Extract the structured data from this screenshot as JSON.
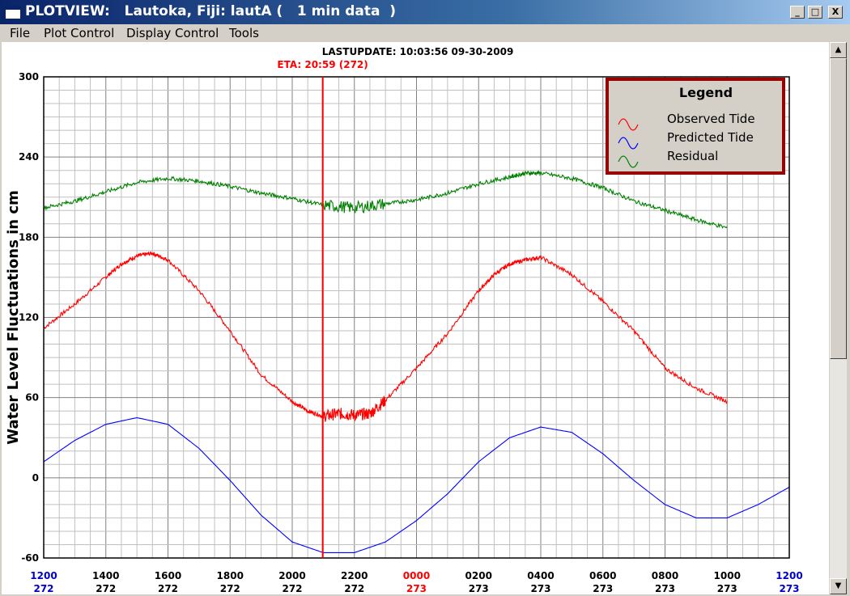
{
  "window": {
    "title": "PLOTVIEW:   Lautoka, Fiji: lautA (   1 min data  )",
    "minimize_glyph": "_",
    "maximize_glyph": "□",
    "close_glyph": "X"
  },
  "menu": [
    "File",
    "Plot Control",
    "Display Control",
    "Tools"
  ],
  "scrollbar": {
    "up_glyph": "▲",
    "down_glyph": "▼"
  },
  "plot": {
    "last_update": "LASTUPDATE: 10:03:56  09-30-2009",
    "eta_label": "ETA: 20:59 (272)",
    "colors": {
      "observed": "#ff0000",
      "predicted": "#0000ff",
      "residual": "#008000",
      "eta": "#ff0000",
      "legend_border": "#990000"
    }
  },
  "chart_data": {
    "type": "line",
    "ylabel": "Water Level Fluctuations in cm",
    "ylim": [
      -60,
      300
    ],
    "y_ticks": [
      "300",
      "240",
      "180",
      "120",
      "60",
      "0",
      "-60"
    ],
    "x_ticks": [
      {
        "time": "1200",
        "day": "272",
        "color": "blue"
      },
      {
        "time": "1400",
        "day": "272",
        "color": "black"
      },
      {
        "time": "1600",
        "day": "272",
        "color": "black"
      },
      {
        "time": "1800",
        "day": "272",
        "color": "black"
      },
      {
        "time": "2000",
        "day": "272",
        "color": "black"
      },
      {
        "time": "2200",
        "day": "272",
        "color": "black"
      },
      {
        "time": "0000",
        "day": "273",
        "color": "red"
      },
      {
        "time": "0200",
        "day": "273",
        "color": "black"
      },
      {
        "time": "0400",
        "day": "273",
        "color": "black"
      },
      {
        "time": "0600",
        "day": "273",
        "color": "black"
      },
      {
        "time": "0800",
        "day": "273",
        "color": "black"
      },
      {
        "time": "1000",
        "day": "273",
        "color": "black"
      },
      {
        "time": "1200",
        "day": "273",
        "color": "blue"
      }
    ],
    "x_hours_range": [
      12,
      36
    ],
    "eta_hour": 20.98,
    "legend": {
      "title": "Legend",
      "entries": [
        "Observed Tide",
        "Predicted Tide",
        "Residual"
      ],
      "placement": "top-right"
    },
    "series": [
      {
        "name": "Observed Tide",
        "color": "#ff0000",
        "x": [
          12,
          13,
          14,
          14.5,
          15,
          15.5,
          16,
          17,
          18,
          19,
          20,
          20.5,
          21,
          21.5,
          22,
          22.5,
          23,
          24,
          25,
          26,
          26.5,
          27,
          27.5,
          28,
          29,
          30,
          31,
          32,
          33,
          34
        ],
        "y": [
          112,
          130,
          150,
          160,
          166,
          168,
          163,
          140,
          110,
          77,
          57,
          50,
          46,
          48,
          47,
          48,
          58,
          82,
          108,
          140,
          152,
          160,
          163,
          165,
          152,
          132,
          110,
          82,
          67,
          57
        ]
      },
      {
        "name": "Predicted Tide",
        "color": "#0000ff",
        "x": [
          12,
          13,
          14,
          15,
          16,
          17,
          18,
          19,
          20,
          21,
          22,
          23,
          24,
          25,
          26,
          27,
          28,
          29,
          30,
          31,
          32,
          33,
          34,
          35,
          36
        ],
        "y": [
          12,
          28,
          40,
          45,
          40,
          22,
          -2,
          -28,
          -48,
          -56,
          -56,
          -48,
          -32,
          -12,
          12,
          30,
          38,
          34,
          18,
          -2,
          -20,
          -30,
          -30,
          -20,
          -7
        ]
      },
      {
        "name": "Residual",
        "color": "#008000",
        "x": [
          12,
          13,
          14,
          15,
          16,
          17,
          18,
          19,
          20,
          21,
          22,
          23,
          24,
          25,
          26,
          27,
          27.5,
          28,
          29,
          30,
          31,
          32,
          33,
          34
        ],
        "y": [
          202,
          207,
          214,
          221,
          224,
          222,
          218,
          213,
          209,
          204,
          202,
          205,
          208,
          213,
          220,
          225,
          228,
          228,
          224,
          217,
          207,
          200,
          193,
          187
        ]
      }
    ]
  }
}
